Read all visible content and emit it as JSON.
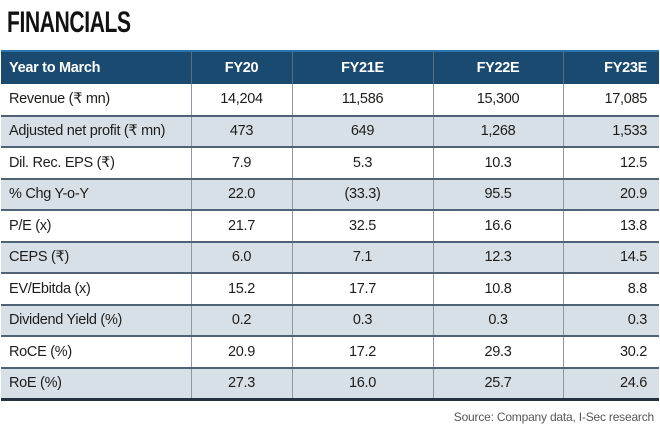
{
  "title": "FINANCIALS",
  "source": "Source: Company data, I-Sec research",
  "colors": {
    "header_bg": "#1a4a70",
    "stripe": "#d8e0e7",
    "top_accent_line": "#2e73ad",
    "bottom_border": "#25323d"
  },
  "table": {
    "columns": [
      "Year to March",
      "FY20",
      "FY21E",
      "FY22E",
      "FY23E"
    ],
    "rows": [
      {
        "label": "Revenue (₹ mn)",
        "values": [
          "14,204",
          "11,586",
          "15,300",
          "17,085"
        ]
      },
      {
        "label": "Adjusted net profit (₹ mn)",
        "values": [
          "473",
          "649",
          "1,268",
          "1,533"
        ]
      },
      {
        "label": "Dil. Rec. EPS (₹)",
        "values": [
          "7.9",
          "5.3",
          "10.3",
          "12.5"
        ]
      },
      {
        "label": "% Chg Y-o-Y",
        "values": [
          "22.0",
          "(33.3)",
          "95.5",
          "20.9"
        ]
      },
      {
        "label": "P/E (x)",
        "values": [
          "21.7",
          "32.5",
          "16.6",
          "13.8"
        ]
      },
      {
        "label": "CEPS (₹)",
        "values": [
          "6.0",
          "7.1",
          "12.3",
          "14.5"
        ]
      },
      {
        "label": "EV/Ebitda (x)",
        "values": [
          "15.2",
          "17.7",
          "10.8",
          "8.8"
        ]
      },
      {
        "label": "Dividend Yield (%)",
        "values": [
          "0.2",
          "0.3",
          "0.3",
          "0.3"
        ]
      },
      {
        "label": "RoCE (%)",
        "values": [
          "20.9",
          "17.2",
          "29.3",
          "30.2"
        ]
      },
      {
        "label": "RoE (%)",
        "values": [
          "27.3",
          "16.0",
          "25.7",
          "24.6"
        ]
      }
    ]
  },
  "chart_data": {
    "type": "table",
    "title": "FINANCIALS",
    "categories": [
      "FY20",
      "FY21E",
      "FY22E",
      "FY23E"
    ],
    "series": [
      {
        "name": "Revenue (₹ mn)",
        "values": [
          14204,
          11586,
          15300,
          17085
        ]
      },
      {
        "name": "Adjusted net profit (₹ mn)",
        "values": [
          473,
          649,
          1268,
          1533
        ]
      },
      {
        "name": "Dil. Rec. EPS (₹)",
        "values": [
          7.9,
          5.3,
          10.3,
          12.5
        ]
      },
      {
        "name": "% Chg Y-o-Y",
        "values": [
          22.0,
          -33.3,
          95.5,
          20.9
        ]
      },
      {
        "name": "P/E (x)",
        "values": [
          21.7,
          32.5,
          16.6,
          13.8
        ]
      },
      {
        "name": "CEPS (₹)",
        "values": [
          6.0,
          7.1,
          12.3,
          14.5
        ]
      },
      {
        "name": "EV/Ebitda (x)",
        "values": [
          15.2,
          17.7,
          10.8,
          8.8
        ]
      },
      {
        "name": "Dividend Yield (%)",
        "values": [
          0.2,
          0.3,
          0.3,
          0.3
        ]
      },
      {
        "name": "RoCE (%)",
        "values": [
          20.9,
          17.2,
          29.3,
          30.2
        ]
      },
      {
        "name": "RoE (%)",
        "values": [
          27.3,
          16.0,
          25.7,
          24.6
        ]
      }
    ]
  }
}
